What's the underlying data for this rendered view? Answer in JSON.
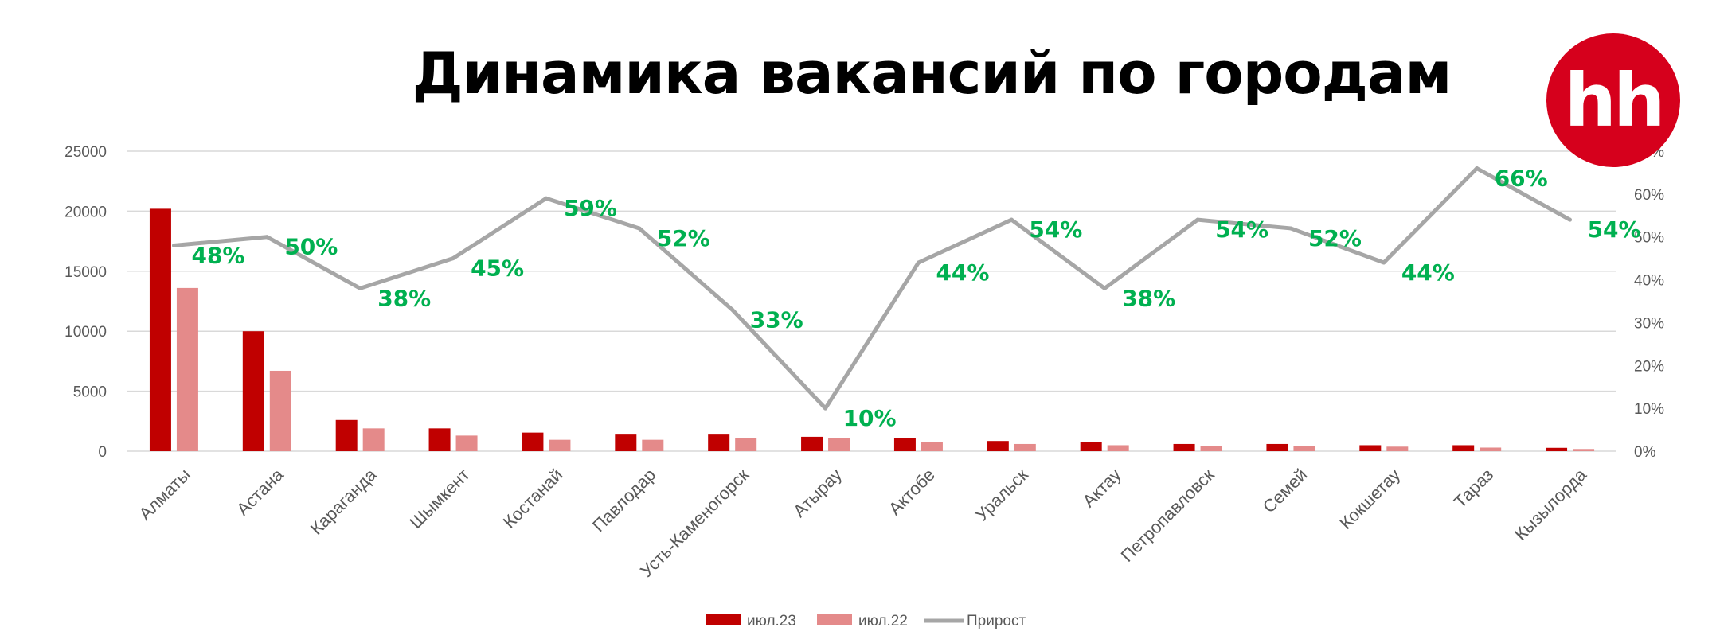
{
  "title": "Динамика вакансий по городам",
  "logo_text": "hh",
  "colors": {
    "jul23": "#c00000",
    "jul22": "#e48a8a",
    "growth": "#a6a6a6",
    "growth_label": "#00b050",
    "logo": "#d6001c"
  },
  "chart_data": {
    "type": "bar",
    "title": "Динамика вакансий по городам",
    "categories": [
      "Алматы",
      "Астана",
      "Караганда",
      "Шымкент",
      "Костанай",
      "Павлодар",
      "Усть-Каменогорск",
      "Атырау",
      "Актобе",
      "Уральск",
      "Актау",
      "Петропавловск",
      "Семей",
      "Кокшетау",
      "Тараз",
      "Кызылорда"
    ],
    "series": [
      {
        "name": "июл.23",
        "type": "bar",
        "axis": "left",
        "values": [
          20200,
          10000,
          2600,
          1900,
          1550,
          1450,
          1450,
          1200,
          1100,
          850,
          750,
          600,
          600,
          500,
          500,
          280
        ]
      },
      {
        "name": "июл.22",
        "type": "bar",
        "axis": "left",
        "values": [
          13600,
          6700,
          1900,
          1300,
          950,
          950,
          1100,
          1100,
          750,
          600,
          500,
          400,
          400,
          380,
          300,
          180
        ]
      },
      {
        "name": "Прирост",
        "type": "line",
        "axis": "right",
        "values": [
          0.48,
          0.5,
          0.38,
          0.45,
          0.59,
          0.52,
          0.33,
          0.1,
          0.44,
          0.54,
          0.38,
          0.54,
          0.52,
          0.44,
          0.66,
          0.54
        ],
        "labels": [
          "48%",
          "50%",
          "38%",
          "45%",
          "59%",
          "52%",
          "33%",
          "10%",
          "44%",
          "54%",
          "38%",
          "54%",
          "52%",
          "44%",
          "66%",
          "54%"
        ]
      }
    ],
    "y_left": {
      "min": 0,
      "max": 25000,
      "ticks": [
        "0",
        "5000",
        "10000",
        "15000",
        "20000",
        "25000"
      ]
    },
    "y_right": {
      "min": 0,
      "max": 0.7,
      "ticks": [
        "0%",
        "10%",
        "20%",
        "30%",
        "40%",
        "50%",
        "60%",
        "70%"
      ]
    },
    "grid": true,
    "legend_position": "bottom"
  }
}
